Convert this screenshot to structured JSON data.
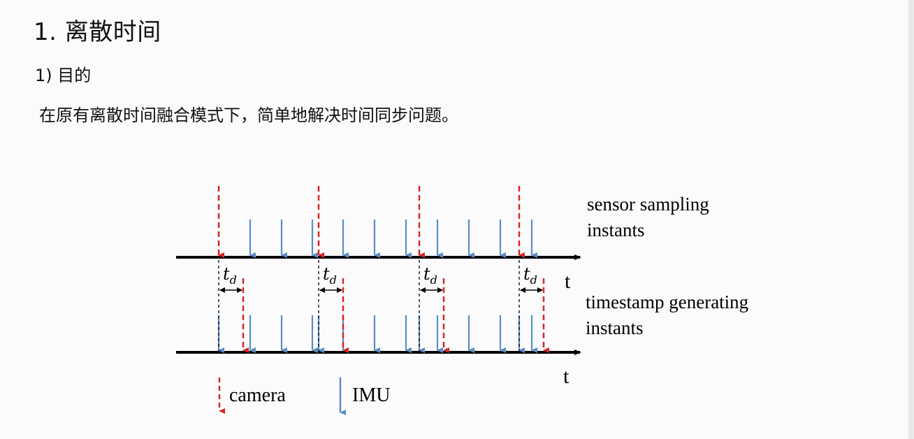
{
  "slide": {
    "heading": "1. 离散时间",
    "subheading": "1) 目的",
    "paragraph": "在原有离散时间融合模式下，简单地解决时间同步问题。"
  },
  "diagram": {
    "top_axis_label": "t",
    "bottom_axis_label": "t",
    "top_row_label_line1": "sensor sampling",
    "top_row_label_line2": "instants",
    "bottom_row_label_line1": "timestamp generating",
    "bottom_row_label_line2": "instants",
    "delay_label_base": "t",
    "delay_label_sub": "d",
    "legend_camera": "camera",
    "legend_imu": "IMU",
    "colors": {
      "camera": "#d62728",
      "imu": "#5b8ec4",
      "axis": "#000000"
    }
  }
}
